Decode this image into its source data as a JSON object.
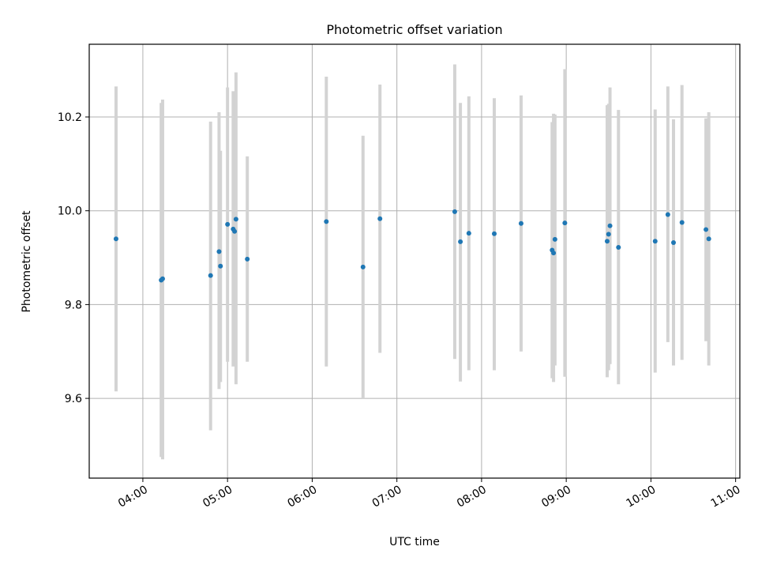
{
  "colors": {
    "point": "#1f77b4",
    "errorbar": "#d3d3d3",
    "grid": "#b0b0b0",
    "axis": "#000000",
    "background": "#ffffff"
  },
  "chart_data": {
    "type": "scatter",
    "title": "Photometric offset variation",
    "xlabel": "UTC time",
    "ylabel": "Photometric offset",
    "x_is_time": true,
    "xlim": [
      "03:22",
      "11:03"
    ],
    "ylim": [
      9.43,
      10.355
    ],
    "xticks": [
      "04:00",
      "05:00",
      "06:00",
      "07:00",
      "08:00",
      "09:00",
      "10:00",
      "11:00"
    ],
    "yticks": [
      "9.6",
      "9.8",
      "10.0",
      "10.2"
    ],
    "grid": true,
    "legend": "none",
    "points": [
      {
        "x": "03:41",
        "y": 9.94,
        "ylo": 9.615,
        "yhi": 10.265
      },
      {
        "x": "04:13",
        "y": 9.852,
        "ylo": 9.475,
        "yhi": 10.23
      },
      {
        "x": "04:14",
        "y": 9.855,
        "ylo": 9.47,
        "yhi": 10.237
      },
      {
        "x": "04:48",
        "y": 9.862,
        "ylo": 9.532,
        "yhi": 10.19
      },
      {
        "x": "04:54",
        "y": 9.913,
        "ylo": 9.62,
        "yhi": 10.21
      },
      {
        "x": "04:55",
        "y": 9.882,
        "ylo": 9.635,
        "yhi": 10.128
      },
      {
        "x": "05:00",
        "y": 9.971,
        "ylo": 9.678,
        "yhi": 10.263
      },
      {
        "x": "05:04",
        "y": 9.961,
        "ylo": 9.668,
        "yhi": 10.255
      },
      {
        "x": "05:05",
        "y": 9.956,
        "ylo": 9.67,
        "yhi": 10.24
      },
      {
        "x": "05:06",
        "y": 9.982,
        "ylo": 9.63,
        "yhi": 10.295
      },
      {
        "x": "05:14",
        "y": 9.897,
        "ylo": 9.678,
        "yhi": 10.116
      },
      {
        "x": "06:10",
        "y": 9.977,
        "ylo": 9.668,
        "yhi": 10.286
      },
      {
        "x": "06:36",
        "y": 9.88,
        "ylo": 9.6,
        "yhi": 10.16
      },
      {
        "x": "06:48",
        "y": 9.983,
        "ylo": 9.697,
        "yhi": 10.269
      },
      {
        "x": "07:41",
        "y": 9.998,
        "ylo": 9.684,
        "yhi": 10.312
      },
      {
        "x": "07:45",
        "y": 9.934,
        "ylo": 9.636,
        "yhi": 10.23
      },
      {
        "x": "07:51",
        "y": 9.952,
        "ylo": 9.66,
        "yhi": 10.244
      },
      {
        "x": "08:09",
        "y": 9.951,
        "ylo": 9.66,
        "yhi": 10.24
      },
      {
        "x": "08:28",
        "y": 9.973,
        "ylo": 9.7,
        "yhi": 10.246
      },
      {
        "x": "08:50",
        "y": 9.916,
        "ylo": 9.643,
        "yhi": 10.189
      },
      {
        "x": "08:51",
        "y": 9.91,
        "ylo": 9.635,
        "yhi": 10.207
      },
      {
        "x": "08:52",
        "y": 9.939,
        "ylo": 9.67,
        "yhi": 10.205
      },
      {
        "x": "08:59",
        "y": 9.974,
        "ylo": 9.646,
        "yhi": 10.302
      },
      {
        "x": "09:29",
        "y": 9.935,
        "ylo": 9.645,
        "yhi": 10.225
      },
      {
        "x": "09:30",
        "y": 9.95,
        "ylo": 9.66,
        "yhi": 10.228
      },
      {
        "x": "09:31",
        "y": 9.968,
        "ylo": 9.673,
        "yhi": 10.263
      },
      {
        "x": "09:37",
        "y": 9.922,
        "ylo": 9.63,
        "yhi": 10.215
      },
      {
        "x": "10:03",
        "y": 9.935,
        "ylo": 9.655,
        "yhi": 10.216
      },
      {
        "x": "10:12",
        "y": 9.992,
        "ylo": 9.72,
        "yhi": 10.265
      },
      {
        "x": "10:16",
        "y": 9.932,
        "ylo": 9.67,
        "yhi": 10.195
      },
      {
        "x": "10:22",
        "y": 9.975,
        "ylo": 9.682,
        "yhi": 10.268
      },
      {
        "x": "10:39",
        "y": 9.96,
        "ylo": 9.722,
        "yhi": 10.197
      },
      {
        "x": "10:41",
        "y": 9.94,
        "ylo": 9.67,
        "yhi": 10.21
      }
    ]
  }
}
